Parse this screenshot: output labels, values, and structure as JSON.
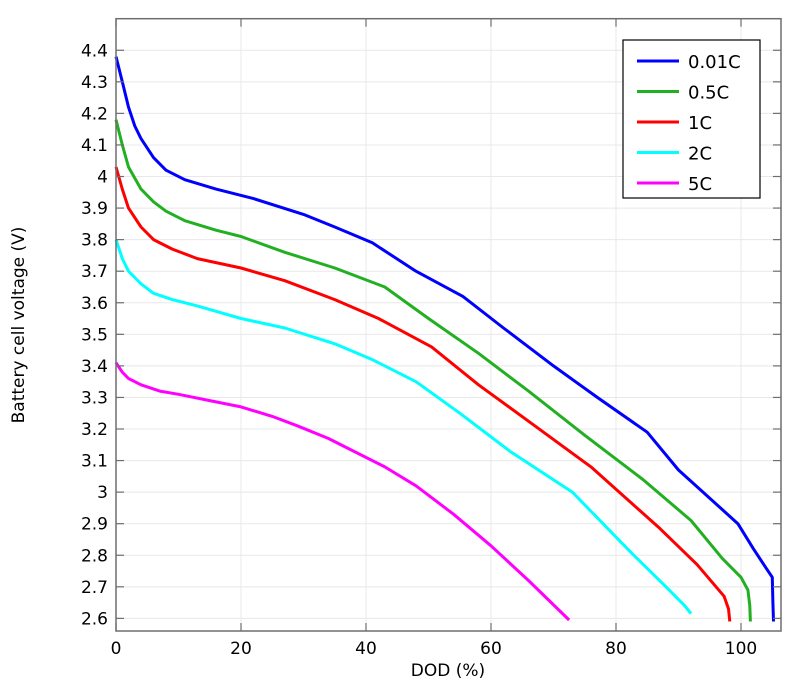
{
  "chart_data": {
    "type": "line",
    "title": "",
    "xlabel": "DOD (%)",
    "ylabel": "Battery cell voltage (V)",
    "xlim": [
      0,
      106.4
    ],
    "ylim": [
      2.56,
      4.5
    ],
    "xticks": [
      0,
      20,
      40,
      60,
      80,
      100
    ],
    "yticks": [
      2.6,
      2.7,
      2.8,
      2.9,
      3,
      3.1,
      3.2,
      3.3,
      3.4,
      3.5,
      3.6,
      3.7,
      3.8,
      3.9,
      4,
      4.1,
      4.2,
      4.3,
      4.4
    ],
    "grid": true,
    "legend_position": "top-right",
    "series": [
      {
        "name": "0.01C",
        "color": "#0000ff",
        "x": [
          0,
          1,
          2,
          3,
          4,
          6,
          8,
          11,
          16,
          22,
          30,
          35,
          41,
          48,
          55.5,
          62,
          70,
          77,
          85,
          90,
          99.5,
          102,
          104,
          105,
          105.1,
          105.2
        ],
        "y": [
          4.38,
          4.3,
          4.22,
          4.16,
          4.12,
          4.06,
          4.02,
          3.99,
          3.96,
          3.93,
          3.88,
          3.84,
          3.79,
          3.7,
          3.62,
          3.52,
          3.4,
          3.3,
          3.19,
          3.07,
          2.9,
          2.82,
          2.76,
          2.73,
          2.65,
          2.59
        ]
      },
      {
        "name": "0.5C",
        "color": "#22b022",
        "x": [
          0,
          1,
          2,
          4,
          6,
          8,
          11,
          16,
          20,
          27,
          35,
          43,
          50,
          58,
          66,
          75,
          84.3,
          92,
          97,
          100,
          101.1,
          101.4,
          101.5
        ],
        "y": [
          4.18,
          4.1,
          4.03,
          3.96,
          3.92,
          3.89,
          3.86,
          3.83,
          3.81,
          3.76,
          3.71,
          3.65,
          3.55,
          3.44,
          3.32,
          3.18,
          3.04,
          2.91,
          2.79,
          2.73,
          2.69,
          2.64,
          2.59
        ]
      },
      {
        "name": "1C",
        "color": "#ff0000",
        "x": [
          0,
          1,
          2,
          4,
          6,
          9,
          13,
          20,
          27,
          35,
          42,
          50.5,
          58,
          67,
          76,
          87,
          93,
          97.3,
          98,
          98.2
        ],
        "y": [
          4.03,
          3.96,
          3.9,
          3.84,
          3.8,
          3.77,
          3.74,
          3.71,
          3.67,
          3.61,
          3.55,
          3.46,
          3.34,
          3.21,
          3.08,
          2.885,
          2.77,
          2.67,
          2.63,
          2.59
        ]
      },
      {
        "name": "2C",
        "color": "#00ffff",
        "x": [
          0,
          1,
          2,
          4,
          6,
          9,
          13,
          20,
          27,
          35,
          41,
          48,
          55,
          63,
          73,
          82.6,
          88,
          91,
          92
        ],
        "y": [
          3.8,
          3.74,
          3.7,
          3.66,
          3.63,
          3.61,
          3.59,
          3.55,
          3.52,
          3.47,
          3.42,
          3.35,
          3.25,
          3.13,
          3.0,
          2.805,
          2.7,
          2.64,
          2.615
        ]
      },
      {
        "name": "5C",
        "color": "#ff00ff",
        "x": [
          0,
          1,
          2,
          4,
          7,
          10,
          15,
          20,
          25,
          29,
          34,
          38,
          43,
          48,
          54,
          60,
          66,
          72.5
        ],
        "y": [
          3.41,
          3.38,
          3.36,
          3.34,
          3.32,
          3.31,
          3.29,
          3.27,
          3.24,
          3.21,
          3.17,
          3.13,
          3.08,
          3.02,
          2.93,
          2.83,
          2.72,
          2.595
        ]
      }
    ]
  }
}
